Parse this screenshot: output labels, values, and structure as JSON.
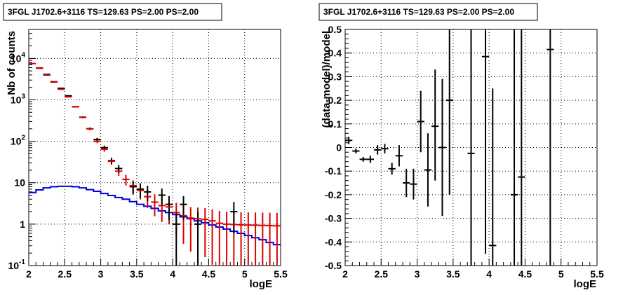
{
  "chart_data": [
    {
      "type": "histogram",
      "title": "3FGL J1702.6+3116 TS=129.63 PS=2.00 PS=2.00",
      "xlabel": "logE",
      "ylabel": "Nb of counts",
      "xlim": [
        2,
        5.5
      ],
      "ylim": [
        0.1,
        50000
      ],
      "yscale": "log",
      "grid": true,
      "x_ticks": [
        "2",
        "2.5",
        "3",
        "3.5",
        "4",
        "4.5",
        "5",
        "5.5"
      ],
      "y_ticks": [
        "10⁻¹",
        "1",
        "10",
        "10²",
        "10³",
        "10⁴"
      ],
      "colors": {
        "data": "#000000",
        "model": "#dd0000",
        "source": "#0000dd"
      },
      "series": [
        {
          "style": "black points with error bars",
          "x": [
            2.05,
            2.15,
            2.25,
            2.35,
            2.45,
            2.55,
            2.65,
            2.75,
            2.85,
            2.95,
            3.05,
            3.15,
            3.25,
            3.35,
            3.45,
            3.55,
            3.65,
            3.75,
            3.85,
            3.95,
            4.05,
            4.15,
            4.25,
            4.35,
            4.45,
            4.55,
            4.65,
            4.75,
            4.85,
            4.95,
            5.05,
            5.15,
            5.25,
            5.35,
            5.45
          ],
          "y": [
            null,
            5800,
            4000,
            2700,
            1900,
            1250,
            680,
            380,
            200,
            110,
            70,
            34,
            22,
            null,
            8,
            7,
            6,
            null,
            5,
            3,
            1,
            3,
            null,
            1,
            null,
            null,
            null,
            null,
            2,
            null,
            null,
            null,
            null,
            null,
            null
          ]
        },
        {
          "style": "red model with error bars",
          "x": [
            2.05,
            2.15,
            2.25,
            2.35,
            2.45,
            2.55,
            2.65,
            2.75,
            2.85,
            2.95,
            3.05,
            3.15,
            3.25,
            3.35,
            3.45,
            3.55,
            3.65,
            3.75,
            3.85,
            3.95,
            4.05,
            4.15,
            4.25,
            4.35,
            4.45,
            4.55,
            4.65,
            4.75,
            4.85,
            4.95,
            5.05,
            5.15,
            5.25,
            5.35,
            5.45
          ],
          "y": [
            7500,
            5900,
            4150,
            2750,
            1800,
            1180,
            680,
            380,
            200,
            100,
            64,
            33,
            19,
            12,
            8.5,
            6.5,
            4.6,
            3.4,
            2.8,
            2.6,
            1.9,
            1.6,
            1.4,
            1.35,
            1.3,
            1.2,
            1.05,
            1.0,
            0.98,
            0.96,
            0.95,
            0.94,
            0.93,
            0.92,
            0.91
          ]
        },
        {
          "style": "blue step histogram",
          "x": [
            2.05,
            2.15,
            2.25,
            2.35,
            2.45,
            2.55,
            2.65,
            2.75,
            2.85,
            2.95,
            3.05,
            3.15,
            3.25,
            3.35,
            3.45,
            3.55,
            3.65,
            3.75,
            3.85,
            3.95,
            4.05,
            4.15,
            4.25,
            4.35,
            4.45,
            4.55,
            4.65,
            4.75,
            4.85,
            4.95,
            5.05,
            5.15,
            5.25,
            5.35,
            5.45
          ],
          "y": [
            5.8,
            6.7,
            7.5,
            8.0,
            8.2,
            8.2,
            8.0,
            7.5,
            6.8,
            6.2,
            5.5,
            4.9,
            4.4,
            4.0,
            3.5,
            3.0,
            2.7,
            2.4,
            2.1,
            1.9,
            1.7,
            1.5,
            1.35,
            1.2,
            1.08,
            0.95,
            0.85,
            0.76,
            0.67,
            0.6,
            0.53,
            0.47,
            0.42,
            0.36,
            0.32
          ]
        }
      ]
    },
    {
      "type": "scatter",
      "title": "3FGL J1702.6+3116 TS=129.63 PS=2.00 PS=2.00",
      "xlabel": "logE",
      "ylabel": "(data-model)/model",
      "xlim": [
        2,
        5.5
      ],
      "ylim": [
        -0.5,
        0.5
      ],
      "grid": true,
      "x_ticks": [
        "2",
        "2.5",
        "3",
        "3.5",
        "4",
        "4.5",
        "5",
        "5.5"
      ],
      "y_ticks": [
        "-0.5",
        "-0.4",
        "-0.3",
        "-0.2",
        "-0.1",
        "0",
        "0.1",
        "0.2",
        "0.3",
        "0.4",
        "0.5"
      ],
      "series": [
        {
          "x": [
            2.05,
            2.15,
            2.25,
            2.35,
            2.45,
            2.55,
            2.65,
            2.75,
            2.85,
            2.95,
            3.05,
            3.15,
            3.25,
            3.35,
            3.45,
            3.75,
            3.95,
            4.05,
            4.35,
            4.45,
            4.85
          ],
          "y": [
            0.03,
            -0.015,
            -0.05,
            -0.05,
            -0.01,
            -0.005,
            -0.09,
            -0.035,
            -0.15,
            -0.155,
            0.11,
            -0.095,
            0.09,
            0.0,
            0.2,
            -0.025,
            0.385,
            -0.415,
            -0.2,
            -0.125,
            0.415
          ],
          "ylow": [
            0.015,
            -0.025,
            -0.06,
            -0.065,
            -0.03,
            -0.025,
            -0.115,
            -0.08,
            -0.21,
            -0.22,
            -0.02,
            -0.25,
            -0.14,
            -0.29,
            -0.2,
            -1,
            -0.45,
            -1,
            -1,
            -1,
            -1
          ],
          "yhigh": [
            0.045,
            -0.005,
            -0.04,
            -0.035,
            0.01,
            0.015,
            -0.065,
            0.01,
            -0.09,
            -0.09,
            0.24,
            0.06,
            0.33,
            0.29,
            0.6,
            1,
            1,
            0.25,
            1,
            1,
            1
          ]
        }
      ]
    }
  ]
}
